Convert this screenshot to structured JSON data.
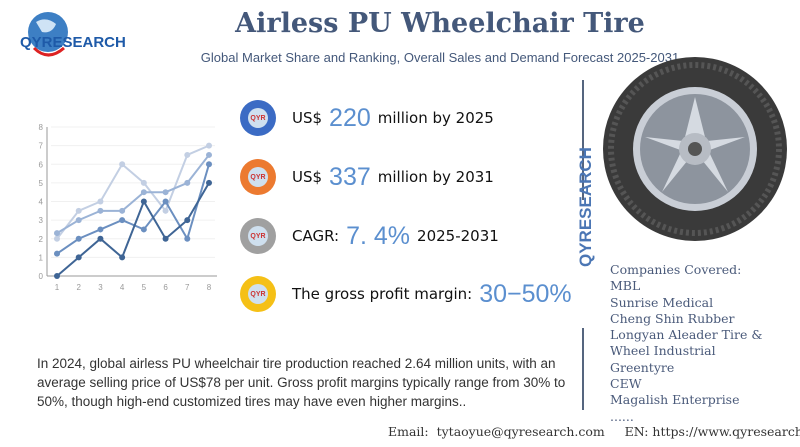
{
  "logo": {
    "text": "QYRESEARCH"
  },
  "header": {
    "title": "Airless PU Wheelchair Tire",
    "subtitle": "Global Market Share and Ranking, Overall Sales and Demand Forecast 2025-2031"
  },
  "stats": [
    {
      "prefix": "US$",
      "value": "220",
      "suffix": "million by 2025",
      "color": "#3b6bc4"
    },
    {
      "prefix": "US$",
      "value": "337",
      "suffix": "million by 2031",
      "color": "#ec7a30"
    },
    {
      "prefix": "CAGR:",
      "value": "7. 4%",
      "suffix": "2025-2031",
      "color": "#a0a0a0"
    },
    {
      "prefix": "The gross profit margin:",
      "value": "30−50%",
      "suffix": "",
      "color": "#f5c016"
    }
  ],
  "side_brand": "QYRESEARCH",
  "companies": {
    "heading": "Companies Covered:",
    "items": [
      "MBL",
      "Sunrise Medical",
      "Cheng Shin Rubber",
      "Longyan Aleader Tire &",
      "Wheel Industrial",
      "Greentyre",
      "CEW",
      "Magalish Enterprise",
      "......"
    ]
  },
  "paragraph": "In 2024, global airless PU wheelchair tire production reached 2.64 million units, with an average selling price of US$78 per unit. Gross profit margins typically range from 30% to 50%, though high-end customized tires may have even higher margins..",
  "footer": "Email:  tytaoyue@qyresearch.com     EN: https://www.qyresearch.com",
  "chart_data": {
    "type": "line",
    "x": [
      1,
      2,
      3,
      4,
      5,
      6,
      7,
      8
    ],
    "xlim": [
      1,
      8
    ],
    "ylim": [
      0,
      8
    ],
    "yticks": [
      0,
      1,
      2,
      3,
      4,
      5,
      6,
      7,
      8
    ],
    "grid": true,
    "series": [
      {
        "values": [
          2,
          3.5,
          4,
          6,
          5,
          3.5,
          6.5,
          7
        ],
        "color": "#c3cfe3"
      },
      {
        "values": [
          2.3,
          3,
          3.5,
          3.5,
          4.5,
          4.5,
          5,
          6.5
        ],
        "color": "#9bb3d6"
      },
      {
        "values": [
          1.2,
          2,
          2.5,
          3,
          2.5,
          4,
          2,
          6
        ],
        "color": "#6b8fc0"
      },
      {
        "values": [
          0,
          1,
          2,
          1,
          4,
          2,
          3,
          5
        ],
        "color": "#3f6595"
      }
    ]
  }
}
